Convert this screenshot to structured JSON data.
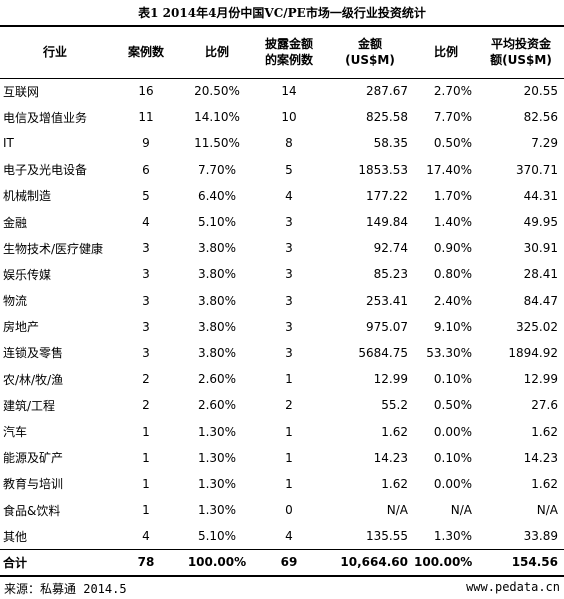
{
  "title": "表1 2014年4月份中国VC/PE市场一级行业投资统计",
  "headers": {
    "industry": "行业",
    "cases": "案例数",
    "ratio": "比例",
    "disclosed": "披露金额\n的案例数",
    "amount": "金额\n(US$M)",
    "amount_ratio": "比例",
    "avg": "平均投资金\n额(US$M)"
  },
  "rows": [
    {
      "industry": "互联网",
      "cases": "16",
      "ratio": "20.50%",
      "disclosed": "14",
      "amount": "287.67",
      "amount_ratio": "2.70%",
      "avg": "20.55"
    },
    {
      "industry": "电信及增值业务",
      "cases": "11",
      "ratio": "14.10%",
      "disclosed": "10",
      "amount": "825.58",
      "amount_ratio": "7.70%",
      "avg": "82.56"
    },
    {
      "industry": "IT",
      "cases": "9",
      "ratio": "11.50%",
      "disclosed": "8",
      "amount": "58.35",
      "amount_ratio": "0.50%",
      "avg": "7.29"
    },
    {
      "industry": "电子及光电设备",
      "cases": "6",
      "ratio": "7.70%",
      "disclosed": "5",
      "amount": "1853.53",
      "amount_ratio": "17.40%",
      "avg": "370.71"
    },
    {
      "industry": "机械制造",
      "cases": "5",
      "ratio": "6.40%",
      "disclosed": "4",
      "amount": "177.22",
      "amount_ratio": "1.70%",
      "avg": "44.31"
    },
    {
      "industry": "金融",
      "cases": "4",
      "ratio": "5.10%",
      "disclosed": "3",
      "amount": "149.84",
      "amount_ratio": "1.40%",
      "avg": "49.95"
    },
    {
      "industry": "生物技术/医疗健康",
      "cases": "3",
      "ratio": "3.80%",
      "disclosed": "3",
      "amount": "92.74",
      "amount_ratio": "0.90%",
      "avg": "30.91"
    },
    {
      "industry": "娱乐传媒",
      "cases": "3",
      "ratio": "3.80%",
      "disclosed": "3",
      "amount": "85.23",
      "amount_ratio": "0.80%",
      "avg": "28.41"
    },
    {
      "industry": "物流",
      "cases": "3",
      "ratio": "3.80%",
      "disclosed": "3",
      "amount": "253.41",
      "amount_ratio": "2.40%",
      "avg": "84.47"
    },
    {
      "industry": "房地产",
      "cases": "3",
      "ratio": "3.80%",
      "disclosed": "3",
      "amount": "975.07",
      "amount_ratio": "9.10%",
      "avg": "325.02"
    },
    {
      "industry": "连锁及零售",
      "cases": "3",
      "ratio": "3.80%",
      "disclosed": "3",
      "amount": "5684.75",
      "amount_ratio": "53.30%",
      "avg": "1894.92"
    },
    {
      "industry": "农/林/牧/渔",
      "cases": "2",
      "ratio": "2.60%",
      "disclosed": "1",
      "amount": "12.99",
      "amount_ratio": "0.10%",
      "avg": "12.99"
    },
    {
      "industry": "建筑/工程",
      "cases": "2",
      "ratio": "2.60%",
      "disclosed": "2",
      "amount": "55.2",
      "amount_ratio": "0.50%",
      "avg": "27.6"
    },
    {
      "industry": "汽车",
      "cases": "1",
      "ratio": "1.30%",
      "disclosed": "1",
      "amount": "1.62",
      "amount_ratio": "0.00%",
      "avg": "1.62"
    },
    {
      "industry": "能源及矿产",
      "cases": "1",
      "ratio": "1.30%",
      "disclosed": "1",
      "amount": "14.23",
      "amount_ratio": "0.10%",
      "avg": "14.23"
    },
    {
      "industry": "教育与培训",
      "cases": "1",
      "ratio": "1.30%",
      "disclosed": "1",
      "amount": "1.62",
      "amount_ratio": "0.00%",
      "avg": "1.62"
    },
    {
      "industry": "食品&饮料",
      "cases": "1",
      "ratio": "1.30%",
      "disclosed": "0",
      "amount": "N/A",
      "amount_ratio": "N/A",
      "avg": "N/A"
    },
    {
      "industry": "其他",
      "cases": "4",
      "ratio": "5.10%",
      "disclosed": "4",
      "amount": "135.55",
      "amount_ratio": "1.30%",
      "avg": "33.89"
    }
  ],
  "total": {
    "industry": "合计",
    "cases": "78",
    "ratio": "100.00%",
    "disclosed": "69",
    "amount": "10,664.60",
    "amount_ratio": "100.00%",
    "avg": "154.56"
  },
  "footer": {
    "source": "来源：私募通  2014.5",
    "site": "www.pedata.cn"
  }
}
